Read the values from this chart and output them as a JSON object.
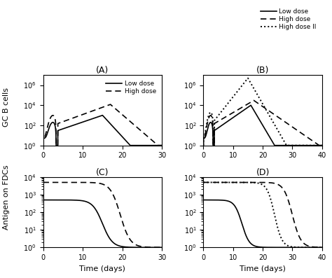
{
  "fig_width": 4.74,
  "fig_height": 3.97,
  "dpi": 100,
  "background_color": "#ffffff",
  "panels": {
    "A": {
      "label": "(A)",
      "xlim": [
        0,
        30
      ],
      "ylim": [
        1.0,
        10000000.0
      ],
      "xticks": [
        0,
        10,
        20,
        30
      ]
    },
    "B": {
      "label": "(B)",
      "xlim": [
        0,
        40
      ],
      "ylim": [
        1.0,
        10000000.0
      ],
      "xticks": [
        0,
        10,
        20,
        30,
        40
      ]
    },
    "C": {
      "label": "(C)",
      "xlim": [
        0,
        30
      ],
      "ylim": [
        1.0,
        10000.0
      ],
      "xticks": [
        0,
        10,
        20,
        30
      ],
      "xlabel": "Time (days)"
    },
    "D": {
      "label": "(D)",
      "xlim": [
        0,
        40
      ],
      "ylim": [
        1.0,
        10000.0
      ],
      "xticks": [
        0,
        10,
        20,
        30,
        40
      ],
      "xlabel": "Time (days)"
    }
  },
  "legend_A": {
    "entries": [
      "Low dose",
      "High dose"
    ],
    "styles": [
      "-",
      "--"
    ]
  },
  "legend_B": {
    "entries": [
      "Low dose",
      "High dose",
      "High dose II"
    ],
    "styles": [
      "-",
      "--",
      ":"
    ]
  },
  "ylabel_top": "GC B cells",
  "ylabel_bottom": "Antigen on FDCs",
  "line_color": "#000000",
  "line_width": 1.2
}
